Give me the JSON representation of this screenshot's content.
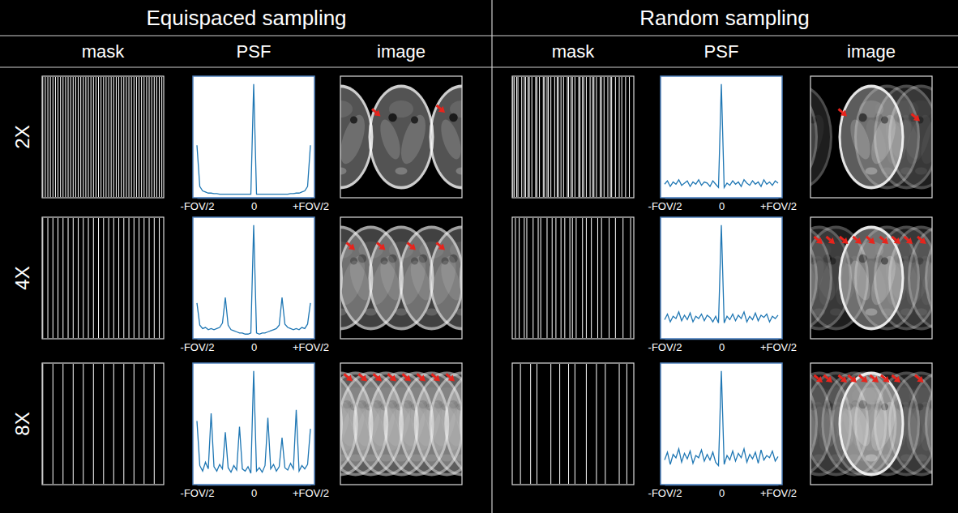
{
  "header": [
    "Equispaced sampling",
    "Random sampling"
  ],
  "panel_labels": [
    "mask",
    "PSF",
    "image"
  ],
  "rows": [
    "2X",
    "4X",
    "8X"
  ],
  "masks": [
    [
      [
        0,
        2,
        4,
        6,
        8,
        10,
        12,
        14,
        16,
        18,
        20,
        22,
        24,
        26,
        28,
        30,
        32,
        34,
        36,
        38,
        40,
        42,
        44,
        46,
        48,
        50,
        52,
        54,
        56,
        58,
        60,
        62,
        64,
        66,
        68,
        70,
        72,
        74,
        76,
        78,
        80,
        82,
        84,
        86,
        88,
        90,
        92,
        94
      ],
      [
        0,
        4,
        8,
        12,
        16,
        20,
        24,
        28,
        32,
        36,
        40,
        44,
        48,
        52,
        56,
        60,
        64,
        68,
        72,
        76,
        80,
        84,
        88,
        92
      ],
      [
        0,
        8,
        16,
        24,
        32,
        40,
        48,
        56,
        64,
        72,
        80,
        88
      ]
    ],
    [
      [
        0,
        1,
        3,
        4,
        7,
        9,
        10,
        12,
        13,
        15,
        18,
        19,
        21,
        24,
        25,
        27,
        28,
        30,
        33,
        35,
        36,
        38,
        40,
        43,
        44,
        46,
        47,
        49,
        52,
        53,
        55,
        56,
        58,
        61,
        63,
        64,
        66,
        69,
        70,
        72,
        75,
        77,
        78,
        81,
        84,
        86,
        89,
        92
      ],
      [
        2,
        5,
        9,
        11,
        16,
        20,
        22,
        27,
        31,
        34,
        38,
        41,
        45,
        47,
        50,
        55,
        58,
        62,
        67,
        70,
        76,
        81,
        87,
        93
      ],
      [
        6,
        14,
        19,
        30,
        37,
        44,
        49,
        58,
        66,
        73,
        84,
        90
      ]
    ]
  ],
  "chart_data": [
    {
      "type": "line",
      "x": [
        -0.5,
        -0.475,
        -0.45,
        -0.425,
        -0.4,
        -0.375,
        -0.35,
        -0.325,
        -0.3,
        -0.275,
        -0.25,
        -0.225,
        -0.2,
        -0.175,
        -0.15,
        -0.125,
        -0.1,
        -0.075,
        -0.05,
        -0.025,
        0,
        0.025,
        0.05,
        0.075,
        0.1,
        0.125,
        0.15,
        0.175,
        0.2,
        0.225,
        0.25,
        0.275,
        0.3,
        0.325,
        0.35,
        0.375,
        0.4,
        0.425,
        0.45,
        0.475,
        0.5
      ],
      "values": [
        0.45,
        0.08,
        0.04,
        0.03,
        0.02,
        0.02,
        0.015,
        0.015,
        0.01,
        0.01,
        0.01,
        0.01,
        0.01,
        0.01,
        0.01,
        0.01,
        0.01,
        0.01,
        0.01,
        0.01,
        1.0,
        0.01,
        0.01,
        0.01,
        0.01,
        0.01,
        0.01,
        0.01,
        0.01,
        0.01,
        0.01,
        0.01,
        0.01,
        0.015,
        0.015,
        0.02,
        0.02,
        0.03,
        0.04,
        0.08,
        0.45
      ],
      "xlim": [
        -0.5,
        0.5
      ],
      "xticks": [
        {
          "value": -0.5,
          "label": "-FOV/2"
        },
        0,
        {
          "value": 0.5,
          "label": "+FOV/2"
        }
      ],
      "ylim": [
        0,
        1.05
      ],
      "tick_labels": "x",
      "color": "#1f77b4"
    },
    {
      "type": "line",
      "x": [
        -0.5,
        -0.475,
        -0.45,
        -0.425,
        -0.4,
        -0.375,
        -0.35,
        -0.325,
        -0.3,
        -0.275,
        -0.25,
        -0.225,
        -0.2,
        -0.175,
        -0.15,
        -0.125,
        -0.1,
        -0.075,
        -0.05,
        -0.025,
        0,
        0.025,
        0.05,
        0.075,
        0.1,
        0.125,
        0.15,
        0.175,
        0.2,
        0.225,
        0.25,
        0.275,
        0.3,
        0.325,
        0.35,
        0.375,
        0.4,
        0.425,
        0.45,
        0.475,
        0.5
      ],
      "values": [
        0.3,
        0.1,
        0.07,
        0.08,
        0.06,
        0.07,
        0.06,
        0.07,
        0.08,
        0.12,
        0.35,
        0.1,
        0.06,
        0.05,
        0.04,
        0.03,
        0.03,
        0.02,
        0.02,
        0.03,
        1.0,
        0.03,
        0.02,
        0.03,
        0.03,
        0.04,
        0.05,
        0.06,
        0.07,
        0.1,
        0.35,
        0.11,
        0.08,
        0.07,
        0.06,
        0.07,
        0.06,
        0.08,
        0.07,
        0.11,
        0.3
      ],
      "xlim": [
        -0.5,
        0.5
      ],
      "xticks": [
        {
          "value": -0.5,
          "label": "-FOV/2"
        },
        0,
        {
          "value": 0.5,
          "label": "+FOV/2"
        }
      ],
      "ylim": [
        0,
        1.05
      ],
      "tick_labels": "x",
      "color": "#1f77b4"
    },
    {
      "type": "line",
      "x": [
        -0.5,
        -0.475,
        -0.45,
        -0.425,
        -0.4,
        -0.375,
        -0.35,
        -0.325,
        -0.3,
        -0.275,
        -0.25,
        -0.225,
        -0.2,
        -0.175,
        -0.15,
        -0.125,
        -0.1,
        -0.075,
        -0.05,
        -0.025,
        0,
        0.025,
        0.05,
        0.075,
        0.1,
        0.125,
        0.15,
        0.175,
        0.2,
        0.225,
        0.25,
        0.275,
        0.3,
        0.325,
        0.35,
        0.375,
        0.4,
        0.425,
        0.45,
        0.475,
        0.5
      ],
      "values": [
        0.55,
        0.15,
        0.1,
        0.18,
        0.12,
        0.62,
        0.14,
        0.1,
        0.16,
        0.12,
        0.45,
        0.13,
        0.09,
        0.15,
        0.11,
        0.5,
        0.12,
        0.1,
        0.14,
        0.08,
        1.0,
        0.1,
        0.13,
        0.09,
        0.15,
        0.58,
        0.12,
        0.16,
        0.1,
        0.14,
        0.4,
        0.13,
        0.11,
        0.17,
        0.12,
        0.65,
        0.1,
        0.15,
        0.12,
        0.16,
        0.48
      ],
      "xlim": [
        -0.5,
        0.5
      ],
      "xticks": [
        {
          "value": -0.5,
          "label": "-FOV/2"
        },
        0,
        {
          "value": 0.5,
          "label": "+FOV/2"
        }
      ],
      "ylim": [
        0,
        1.05
      ],
      "tick_labels": "x",
      "color": "#1f77b4"
    },
    {
      "type": "line",
      "x": [
        -0.5,
        -0.475,
        -0.45,
        -0.425,
        -0.4,
        -0.375,
        -0.35,
        -0.325,
        -0.3,
        -0.275,
        -0.25,
        -0.225,
        -0.2,
        -0.175,
        -0.15,
        -0.125,
        -0.1,
        -0.075,
        -0.05,
        -0.025,
        0,
        0.025,
        0.05,
        0.075,
        0.1,
        0.125,
        0.15,
        0.175,
        0.2,
        0.225,
        0.25,
        0.275,
        0.3,
        0.325,
        0.35,
        0.375,
        0.4,
        0.425,
        0.45,
        0.475,
        0.5
      ],
      "values": [
        0.1,
        0.13,
        0.08,
        0.12,
        0.1,
        0.14,
        0.09,
        0.11,
        0.13,
        0.08,
        0.12,
        0.1,
        0.14,
        0.09,
        0.12,
        0.11,
        0.08,
        0.13,
        0.1,
        0.07,
        1.0,
        0.07,
        0.11,
        0.09,
        0.13,
        0.1,
        0.12,
        0.08,
        0.14,
        0.11,
        0.09,
        0.13,
        0.1,
        0.12,
        0.08,
        0.14,
        0.1,
        0.12,
        0.09,
        0.13,
        0.11
      ],
      "xlim": [
        -0.5,
        0.5
      ],
      "xticks": [
        {
          "value": -0.5,
          "label": "-FOV/2"
        },
        0,
        {
          "value": 0.5,
          "label": "+FOV/2"
        }
      ],
      "ylim": [
        0,
        1.05
      ],
      "tick_labels": "x",
      "color": "#1f77b4"
    },
    {
      "type": "line",
      "x": [
        -0.5,
        -0.475,
        -0.45,
        -0.425,
        -0.4,
        -0.375,
        -0.35,
        -0.325,
        -0.3,
        -0.275,
        -0.25,
        -0.225,
        -0.2,
        -0.175,
        -0.15,
        -0.125,
        -0.1,
        -0.075,
        -0.05,
        -0.025,
        0,
        0.025,
        0.05,
        0.075,
        0.1,
        0.125,
        0.15,
        0.175,
        0.2,
        0.225,
        0.25,
        0.275,
        0.3,
        0.325,
        0.35,
        0.375,
        0.4,
        0.425,
        0.45,
        0.475,
        0.5
      ],
      "values": [
        0.15,
        0.2,
        0.13,
        0.18,
        0.16,
        0.22,
        0.14,
        0.19,
        0.15,
        0.21,
        0.13,
        0.18,
        0.16,
        0.2,
        0.14,
        0.19,
        0.17,
        0.13,
        0.18,
        0.12,
        1.0,
        0.12,
        0.18,
        0.15,
        0.2,
        0.14,
        0.19,
        0.16,
        0.22,
        0.13,
        0.18,
        0.15,
        0.21,
        0.14,
        0.19,
        0.17,
        0.2,
        0.13,
        0.18,
        0.16,
        0.19
      ],
      "xlim": [
        -0.5,
        0.5
      ],
      "xticks": [
        {
          "value": -0.5,
          "label": "-FOV/2"
        },
        0,
        {
          "value": 0.5,
          "label": "+FOV/2"
        }
      ],
      "ylim": [
        0,
        1.05
      ],
      "tick_labels": "x",
      "color": "#1f77b4"
    },
    {
      "type": "line",
      "x": [
        -0.5,
        -0.475,
        -0.45,
        -0.425,
        -0.4,
        -0.375,
        -0.35,
        -0.325,
        -0.3,
        -0.275,
        -0.25,
        -0.225,
        -0.2,
        -0.175,
        -0.15,
        -0.125,
        -0.1,
        -0.075,
        -0.05,
        -0.025,
        0,
        0.025,
        0.05,
        0.075,
        0.1,
        0.125,
        0.15,
        0.175,
        0.2,
        0.225,
        0.25,
        0.275,
        0.3,
        0.325,
        0.35,
        0.375,
        0.4,
        0.425,
        0.45,
        0.475,
        0.5
      ],
      "values": [
        0.2,
        0.27,
        0.16,
        0.25,
        0.22,
        0.3,
        0.18,
        0.26,
        0.21,
        0.28,
        0.17,
        0.24,
        0.22,
        0.29,
        0.19,
        0.25,
        0.2,
        0.27,
        0.18,
        0.15,
        1.0,
        0.16,
        0.24,
        0.2,
        0.28,
        0.19,
        0.26,
        0.22,
        0.3,
        0.18,
        0.25,
        0.21,
        0.27,
        0.17,
        0.29,
        0.2,
        0.24,
        0.22,
        0.28,
        0.19,
        0.23
      ],
      "xlim": [
        -0.5,
        0.5
      ],
      "xticks": [
        {
          "value": -0.5,
          "label": "-FOV/2"
        },
        0,
        {
          "value": 0.5,
          "label": "+FOV/2"
        }
      ],
      "ylim": [
        0,
        1.05
      ],
      "tick_labels": "x",
      "color": "#1f77b4"
    }
  ]
}
